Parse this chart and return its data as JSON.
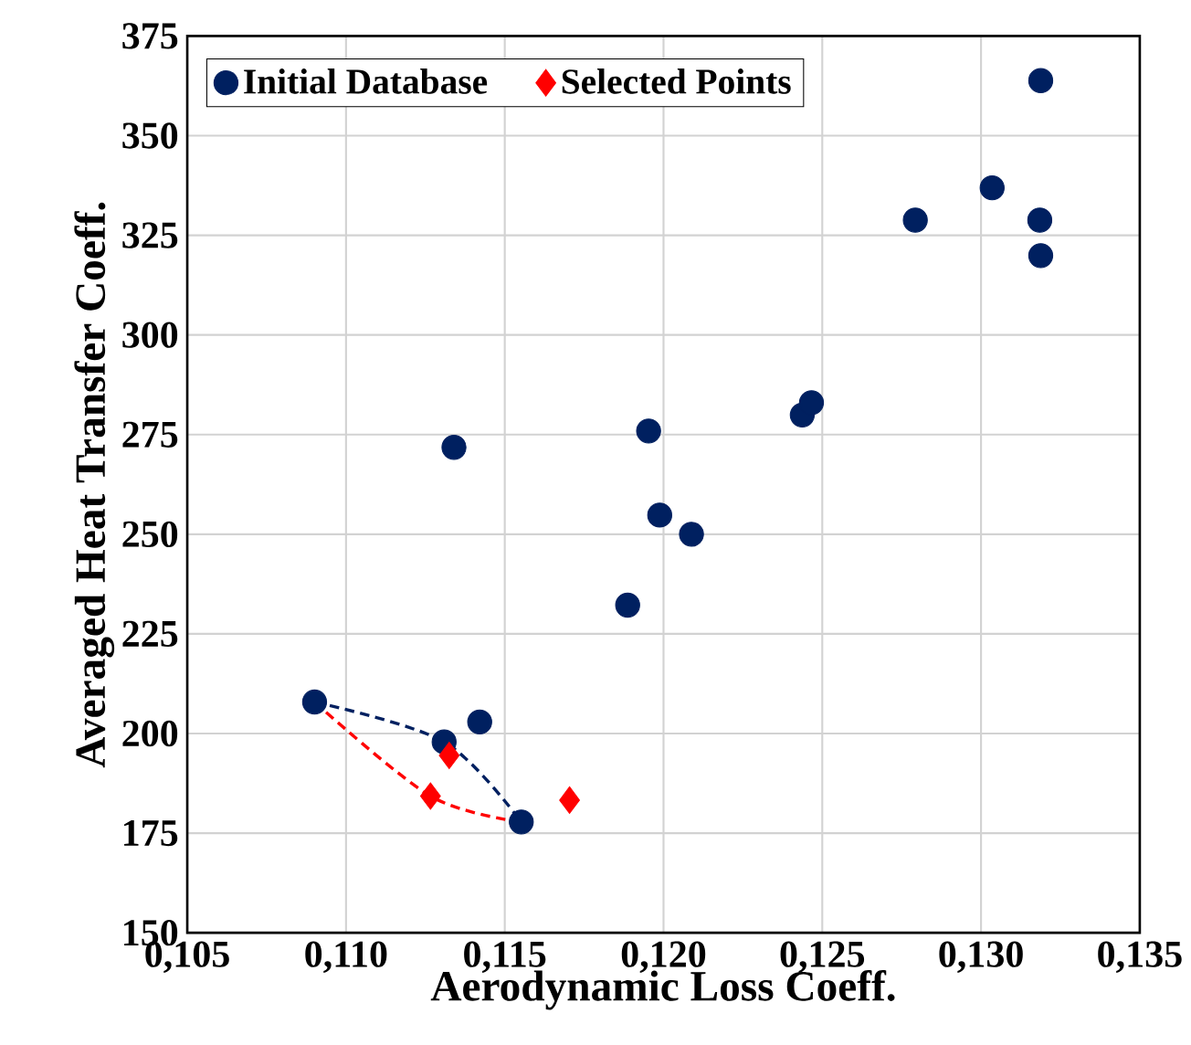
{
  "chart_data": {
    "type": "scatter",
    "xlabel": "Aerodynamic Loss Coeff.",
    "ylabel": "Averaged Heat Transfer Coeff.",
    "xlim": [
      0.105,
      0.135
    ],
    "ylim": [
      150,
      375
    ],
    "xticks": [
      {
        "value": 0.105,
        "label": "0,105"
      },
      {
        "value": 0.11,
        "label": "0,110"
      },
      {
        "value": 0.115,
        "label": "0,115"
      },
      {
        "value": 0.12,
        "label": "0,120"
      },
      {
        "value": 0.125,
        "label": "0,125"
      },
      {
        "value": 0.13,
        "label": "0,130"
      },
      {
        "value": 0.135,
        "label": "0,135"
      }
    ],
    "yticks": [
      150,
      175,
      200,
      225,
      250,
      275,
      300,
      325,
      350,
      375
    ],
    "grid": true,
    "legend": "top left",
    "series": [
      {
        "name": "Initial Database",
        "color": "#002060",
        "marker": "circle",
        "x": [
          0.10901,
          0.11309,
          0.11421,
          0.11552,
          0.1134,
          0.11887,
          0.11988,
          0.12088,
          0.11953,
          0.12437,
          0.12466,
          0.12793,
          0.13035,
          0.13185,
          0.13188,
          0.13188
        ],
        "values": [
          207.9,
          197.9,
          202.9,
          177.8,
          271.8,
          232.2,
          254.8,
          250,
          275.9,
          279.9,
          283.0,
          328.8,
          336.9,
          328.8,
          319.9,
          363.8
        ]
      },
      {
        "name": "Selected Points",
        "color": "#ff0000",
        "marker": "diamond",
        "x": [
          0.11266,
          0.11325,
          0.11704
        ],
        "values": [
          184.3,
          194.5,
          183.3
        ]
      },
      {
        "type": "line",
        "color": "#002060",
        "line_style": "dashed",
        "marker": "none",
        "x": [
          0.10901,
          0.11309,
          0.11552
        ],
        "values": [
          207.9,
          197.9,
          177.8
        ]
      },
      {
        "type": "line",
        "color": "#ff0000",
        "line_style": "dashed",
        "marker": "none",
        "x": [
          0.10901,
          0.11266,
          0.11552
        ],
        "values": [
          207.9,
          184.3,
          177.8
        ]
      }
    ]
  }
}
